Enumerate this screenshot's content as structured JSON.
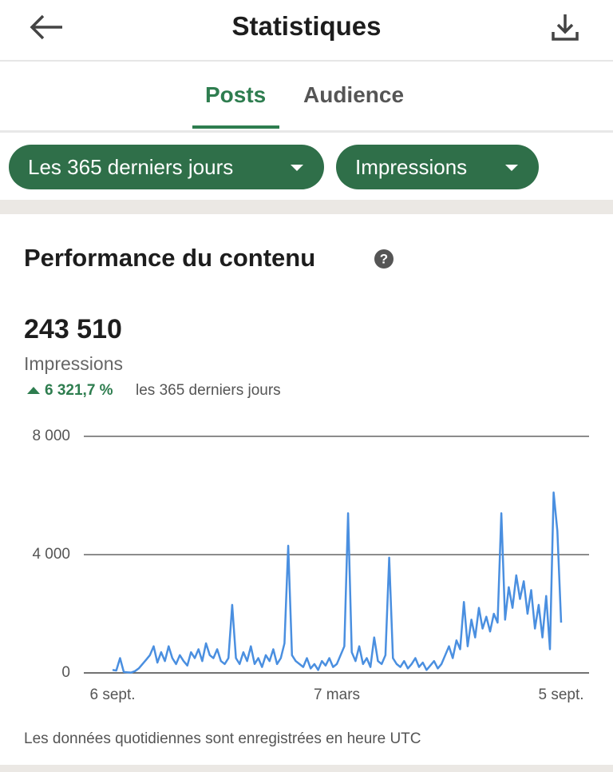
{
  "header": {
    "title": "Statistiques"
  },
  "tabs": [
    "Posts",
    "Audience"
  ],
  "filters": [
    "Les 365 derniers jours",
    "Impressions"
  ],
  "section": {
    "title": "Performance du contenu",
    "total": "243 510",
    "metric": "Impressions",
    "change": "6 321,7 %",
    "period": "les 365 derniers jours",
    "footnote": "Les données quotidiennes sont enregistrées en heure UTC"
  },
  "chart_data": {
    "type": "line",
    "categories": [
      "6 sept.",
      null,
      null,
      null,
      null,
      null,
      null,
      null,
      null,
      null,
      null,
      null,
      null,
      null,
      null,
      null,
      null,
      null,
      null,
      null,
      null,
      null,
      null,
      null,
      null,
      null,
      null,
      null,
      null,
      null,
      null,
      null,
      null,
      null,
      null,
      null,
      null,
      null,
      null,
      null,
      null,
      null,
      null,
      null,
      null,
      null,
      null,
      null,
      null,
      null,
      null,
      null,
      null,
      null,
      null,
      null,
      null,
      null,
      null,
      null,
      "7 mars",
      null,
      null,
      null,
      null,
      null,
      null,
      null,
      null,
      null,
      null,
      null,
      null,
      null,
      null,
      null,
      null,
      null,
      null,
      null,
      null,
      null,
      null,
      null,
      null,
      null,
      null,
      null,
      null,
      null,
      null,
      null,
      null,
      null,
      null,
      null,
      null,
      null,
      null,
      null,
      null,
      null,
      null,
      null,
      null,
      null,
      null,
      null,
      null,
      null,
      null,
      null,
      null,
      null,
      null,
      null,
      null,
      null,
      null,
      null,
      "5 sept."
    ],
    "series": [
      {
        "color": "#4a8fe0",
        "values": [
          100,
          80,
          500,
          30,
          20,
          10,
          60,
          150,
          300,
          450,
          600,
          900,
          350,
          700,
          400,
          900,
          500,
          300,
          600,
          400,
          250,
          700,
          500,
          800,
          400,
          1000,
          600,
          500,
          800,
          400,
          300,
          500,
          2300,
          500,
          300,
          700,
          400,
          900,
          300,
          500,
          200,
          600,
          400,
          800,
          300,
          500,
          1000,
          4300,
          600,
          400,
          300,
          200,
          500,
          150,
          300,
          100,
          400,
          250,
          500,
          200,
          300,
          600,
          900,
          5400,
          700,
          400,
          900,
          300,
          500,
          200,
          1200,
          400,
          300,
          600,
          3900,
          500,
          300,
          200,
          400,
          150,
          300,
          500,
          200,
          350,
          100,
          250,
          400,
          150,
          300,
          600,
          900,
          500,
          1100,
          800,
          2400,
          900,
          1800,
          1200,
          2200,
          1500,
          1900,
          1400,
          2000,
          1700,
          5400,
          1800,
          2900,
          2200,
          3300,
          2500,
          3100,
          2000,
          2800,
          1500,
          2300,
          1200,
          2600,
          800,
          6100,
          4800,
          1700
        ]
      }
    ],
    "ylim": [
      0,
      8000
    ],
    "yticks": [
      0,
      {
        "value": 4000,
        "label": "4 000"
      },
      {
        "value": 8000,
        "label": "8 000"
      }
    ],
    "grid": true
  }
}
